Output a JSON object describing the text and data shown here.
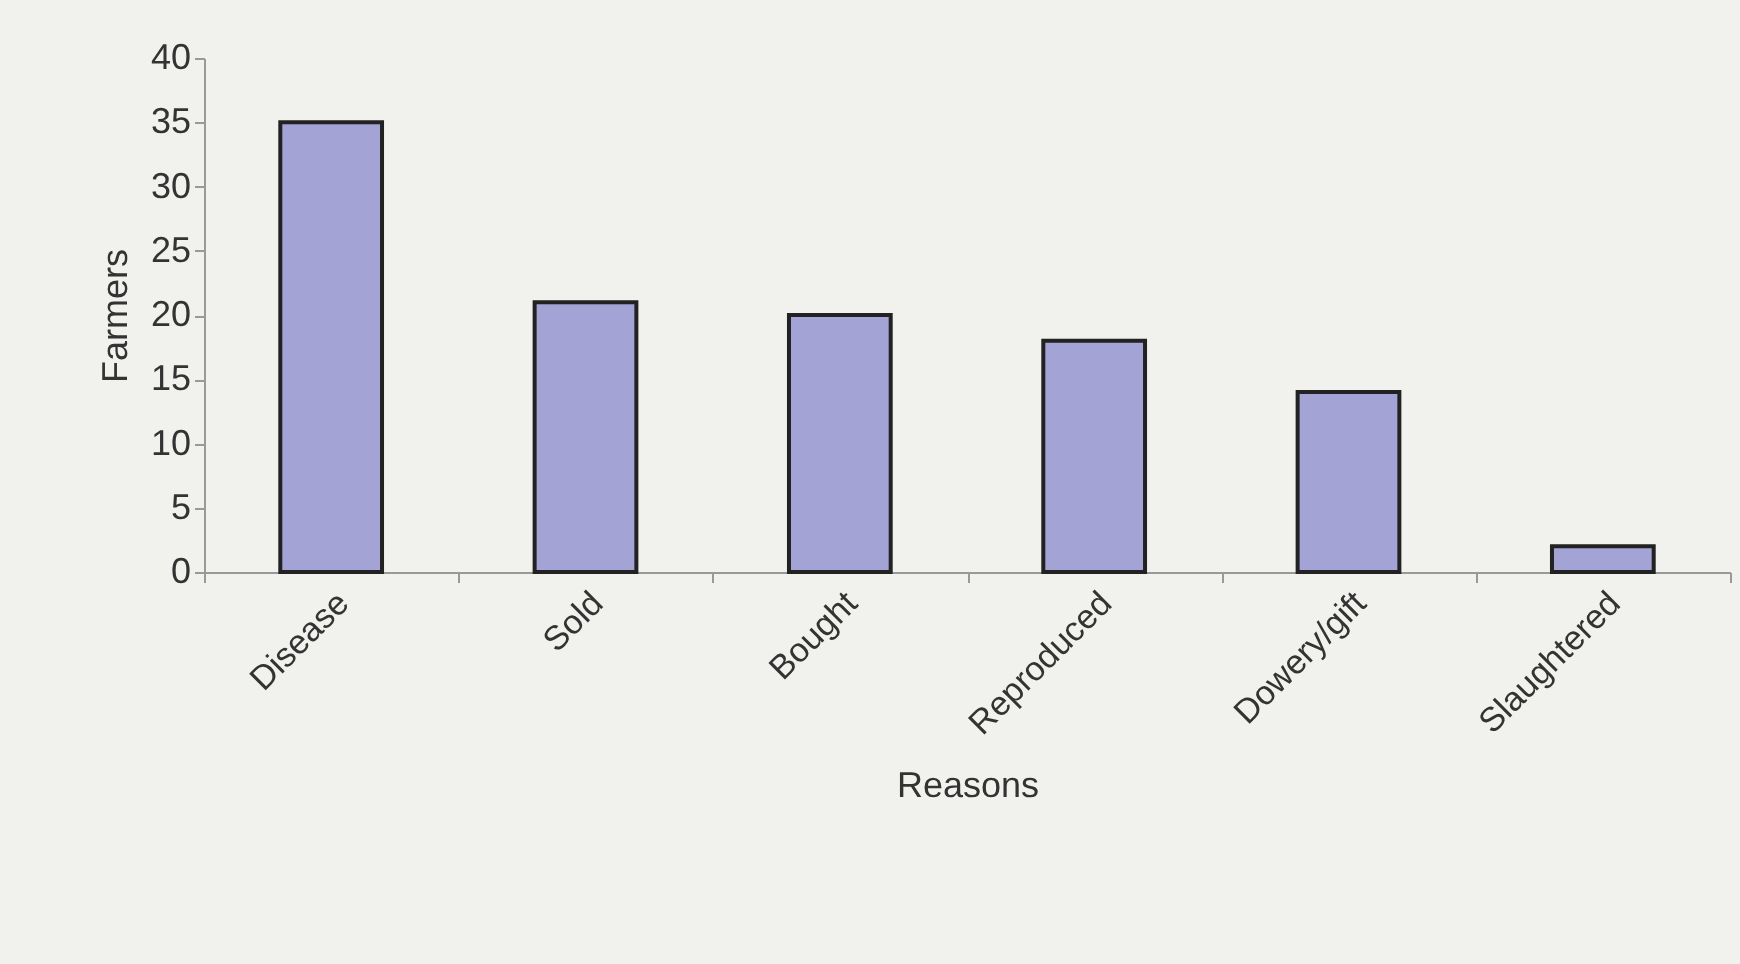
{
  "chart_data": {
    "type": "bar",
    "xlabel": "Reasons",
    "ylabel": "Farmers",
    "categories": [
      "Disease",
      "Sold",
      "Bought",
      "Reproduced",
      "Dowery/gift",
      "Slaughtered"
    ],
    "values": [
      35,
      21,
      20,
      18,
      14,
      2
    ],
    "color": "#a3a3d6",
    "ylim": [
      0,
      40
    ],
    "yticks": [
      0,
      5,
      10,
      15,
      20,
      25,
      30,
      35,
      40
    ],
    "grid": false,
    "legend": false
  }
}
